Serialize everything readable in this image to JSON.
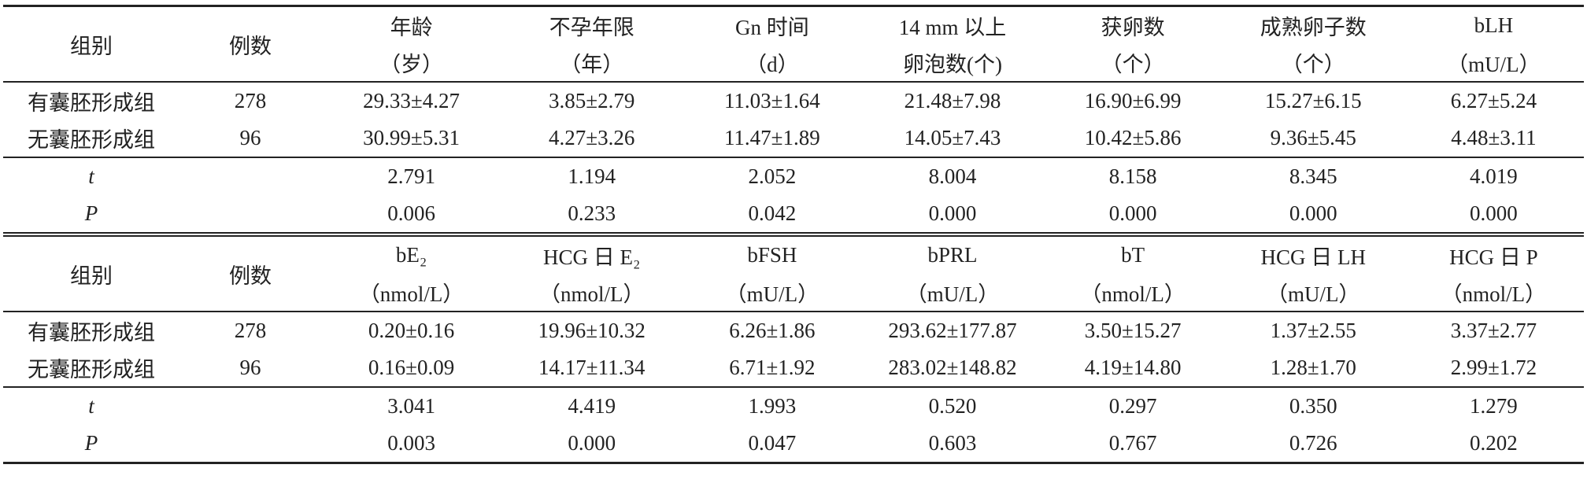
{
  "sections": [
    {
      "header": [
        [
          "组别"
        ],
        [
          "例数"
        ],
        [
          "年龄",
          "（岁）"
        ],
        [
          "不孕年限",
          "（年）"
        ],
        [
          "Gn 时间",
          "（d）"
        ],
        [
          "14 mm 以上",
          "卵泡数(个)"
        ],
        [
          "获卵数",
          "（个）"
        ],
        [
          "成熟卵子数",
          "（个）"
        ],
        [
          "bLH",
          "（mU/L）"
        ]
      ],
      "rows": [
        [
          "有囊胚形成组",
          "278",
          "29.33±4.27",
          "3.85±2.79",
          "11.03±1.64",
          "21.48±7.98",
          "16.90±6.99",
          "15.27±6.15",
          "6.27±5.24"
        ],
        [
          "无囊胚形成组",
          "96",
          "30.99±5.31",
          "4.27±3.26",
          "11.47±1.89",
          "14.05±7.43",
          "10.42±5.86",
          "9.36±5.45",
          "4.48±3.11"
        ]
      ],
      "stats": [
        {
          "label": "t",
          "values": [
            "2.791",
            "1.194",
            "2.052",
            "8.004",
            "8.158",
            "8.345",
            "4.019"
          ]
        },
        {
          "label": "P",
          "values": [
            "0.006",
            "0.233",
            "0.042",
            "0.000",
            "0.000",
            "0.000",
            "0.000"
          ]
        }
      ]
    },
    {
      "header": [
        [
          "组别"
        ],
        [
          "例数"
        ],
        [
          "bE₂",
          "（nmol/L）"
        ],
        [
          "HCG 日 E₂",
          "（nmol/L）"
        ],
        [
          "bFSH",
          "（mU/L）"
        ],
        [
          "bPRL",
          "（mU/L）"
        ],
        [
          "bT",
          "（nmol/L）"
        ],
        [
          "HCG 日 LH",
          "（mU/L）"
        ],
        [
          "HCG 日 P",
          "（nmol/L）"
        ]
      ],
      "rows": [
        [
          "有囊胚形成组",
          "278",
          "0.20±0.16",
          "19.96±10.32",
          "6.26±1.86",
          "293.62±177.87",
          "3.50±15.27",
          "1.37±2.55",
          "3.37±2.77"
        ],
        [
          "无囊胚形成组",
          "96",
          "0.16±0.09",
          "14.17±11.34",
          "6.71±1.92",
          "283.02±148.82",
          "4.19±14.80",
          "1.28±1.70",
          "2.99±1.72"
        ]
      ],
      "stats": [
        {
          "label": "t",
          "values": [
            "3.041",
            "4.419",
            "1.993",
            "0.520",
            "0.297",
            "0.350",
            "1.279"
          ]
        },
        {
          "label": "P",
          "values": [
            "0.003",
            "0.000",
            "0.047",
            "0.603",
            "0.767",
            "0.726",
            "0.202"
          ]
        }
      ]
    }
  ]
}
